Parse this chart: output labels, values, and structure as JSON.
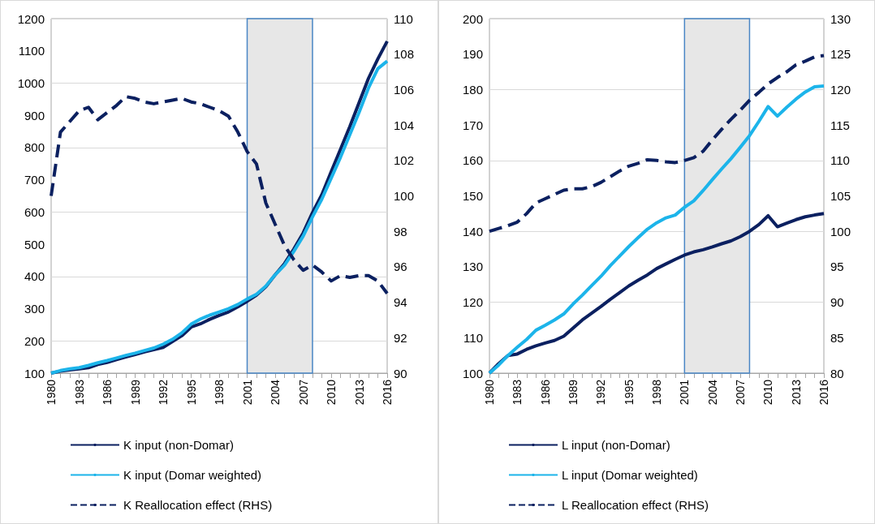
{
  "chart_data": [
    {
      "type": "line",
      "marker": "none",
      "grid": "y",
      "legend": "bottom",
      "x": [
        1980,
        1981,
        1982,
        1983,
        1984,
        1985,
        1986,
        1987,
        1988,
        1989,
        1990,
        1991,
        1992,
        1993,
        1994,
        1995,
        1996,
        1997,
        1998,
        1999,
        2000,
        2001,
        2002,
        2003,
        2004,
        2005,
        2006,
        2007,
        2008,
        2009,
        2010,
        2011,
        2012,
        2013,
        2014,
        2015,
        2016
      ],
      "xlim": [
        1980,
        2016
      ],
      "xticks": [
        1980,
        {
          "value": 1981,
          "label": null
        },
        {
          "value": 1982,
          "label": null
        },
        1983,
        {
          "value": 1984,
          "label": null
        },
        {
          "value": 1985,
          "label": null
        },
        1986,
        {
          "value": 1987,
          "label": null
        },
        {
          "value": 1988,
          "label": null
        },
        1989,
        {
          "value": 1990,
          "label": null
        },
        {
          "value": 1991,
          "label": null
        },
        1992,
        {
          "value": 1993,
          "label": null
        },
        {
          "value": 1994,
          "label": null
        },
        1995,
        {
          "value": 1996,
          "label": null
        },
        {
          "value": 1997,
          "label": null
        },
        1998,
        {
          "value": 1999,
          "label": null
        },
        {
          "value": 2000,
          "label": null
        },
        2001,
        {
          "value": 2002,
          "label": null
        },
        {
          "value": 2003,
          "label": null
        },
        2004,
        {
          "value": 2005,
          "label": null
        },
        {
          "value": 2006,
          "label": null
        },
        2007,
        {
          "value": 2008,
          "label": null
        },
        {
          "value": 2009,
          "label": null
        },
        2010,
        {
          "value": 2011,
          "label": null
        },
        {
          "value": 2012,
          "label": null
        },
        2013,
        {
          "value": 2014,
          "label": null
        },
        {
          "value": 2015,
          "label": null
        },
        2016
      ],
      "ylim": [
        100,
        1200
      ],
      "yticks": [
        100,
        200,
        300,
        400,
        500,
        600,
        700,
        800,
        900,
        1000,
        1100,
        1200
      ],
      "y2lim": [
        90,
        110
      ],
      "y2ticks": [
        90,
        92,
        94,
        96,
        98,
        100,
        102,
        104,
        106,
        108,
        110
      ],
      "bands": [
        {
          "axis": "x",
          "from": 2001,
          "to": 2008,
          "color": "#e7e7e7"
        }
      ],
      "series": [
        {
          "name": "K input (non-Domar)",
          "color": "#0b2060",
          "line_style": "solid",
          "values": [
            100,
            106,
            110,
            113,
            117,
            127,
            133,
            142,
            150,
            158,
            166,
            173,
            180,
            198,
            216,
            243,
            253,
            267,
            279,
            290,
            306,
            323,
            342,
            368,
            405,
            440,
            485,
            535,
            598,
            654,
            725,
            795,
            865,
            940,
            1015,
            1075,
            1130
          ]
        },
        {
          "name": "K input (Domar weighted)",
          "color": "#1cb4ea",
          "line_style": "solid",
          "values": [
            100,
            108,
            113,
            117,
            124,
            132,
            139,
            147,
            155,
            162,
            170,
            178,
            190,
            205,
            225,
            252,
            268,
            280,
            290,
            300,
            313,
            330,
            345,
            370,
            405,
            435,
            478,
            525,
            585,
            640,
            705,
            770,
            840,
            910,
            985,
            1045,
            1068
          ]
        },
        {
          "name": "K Reallocation effect (RHS)",
          "color": "#0b2060",
          "line_style": "dashed",
          "axis": "y2",
          "values": [
            100,
            103.6,
            104.2,
            104.8,
            105,
            104.3,
            104.7,
            105.1,
            105.6,
            105.5,
            105.3,
            105.2,
            105.3,
            105.4,
            105.5,
            105.3,
            105.2,
            105,
            104.8,
            104.5,
            103.6,
            102.5,
            101.8,
            99.6,
            98.4,
            97.2,
            96.4,
            95.8,
            96.1,
            95.7,
            95.2,
            95.5,
            95.4,
            95.5,
            95.5,
            95.2,
            94.5
          ]
        }
      ]
    },
    {
      "type": "line",
      "marker": "none",
      "grid": "y",
      "legend": "bottom",
      "x": [
        1980,
        1981,
        1982,
        1983,
        1984,
        1985,
        1986,
        1987,
        1988,
        1989,
        1990,
        1991,
        1992,
        1993,
        1994,
        1995,
        1996,
        1997,
        1998,
        1999,
        2000,
        2001,
        2002,
        2003,
        2004,
        2005,
        2006,
        2007,
        2008,
        2009,
        2010,
        2011,
        2012,
        2013,
        2014,
        2015,
        2016
      ],
      "xlim": [
        1980,
        2016
      ],
      "xticks": [
        1980,
        {
          "value": 1981,
          "label": null
        },
        {
          "value": 1982,
          "label": null
        },
        1983,
        {
          "value": 1984,
          "label": null
        },
        {
          "value": 1985,
          "label": null
        },
        1986,
        {
          "value": 1987,
          "label": null
        },
        {
          "value": 1988,
          "label": null
        },
        1989,
        {
          "value": 1990,
          "label": null
        },
        {
          "value": 1991,
          "label": null
        },
        1992,
        {
          "value": 1993,
          "label": null
        },
        {
          "value": 1994,
          "label": null
        },
        1995,
        {
          "value": 1996,
          "label": null
        },
        {
          "value": 1997,
          "label": null
        },
        1998,
        {
          "value": 1999,
          "label": null
        },
        {
          "value": 2000,
          "label": null
        },
        2001,
        {
          "value": 2002,
          "label": null
        },
        {
          "value": 2003,
          "label": null
        },
        2004,
        {
          "value": 2005,
          "label": null
        },
        {
          "value": 2006,
          "label": null
        },
        2007,
        {
          "value": 2008,
          "label": null
        },
        {
          "value": 2009,
          "label": null
        },
        2010,
        {
          "value": 2011,
          "label": null
        },
        {
          "value": 2012,
          "label": null
        },
        2013,
        {
          "value": 2014,
          "label": null
        },
        {
          "value": 2015,
          "label": null
        },
        2016
      ],
      "ylim": [
        100,
        200
      ],
      "yticks": [
        100,
        110,
        120,
        130,
        140,
        150,
        160,
        170,
        180,
        190,
        200
      ],
      "y2lim": [
        80,
        130
      ],
      "y2ticks": [
        80,
        85,
        90,
        95,
        100,
        105,
        110,
        115,
        120,
        125,
        130
      ],
      "bands": [
        {
          "axis": "x",
          "from": 2001,
          "to": 2008,
          "color": "#e7e7e7"
        }
      ],
      "series": [
        {
          "name": "L input (non-Domar)",
          "color": "#0b2060",
          "line_style": "solid",
          "values": [
            100,
            102.7,
            105,
            105.4,
            106.7,
            107.7,
            108.5,
            109.2,
            110.4,
            112.7,
            115,
            116.9,
            118.8,
            120.8,
            122.7,
            124.6,
            126.2,
            127.7,
            129.5,
            130.8,
            132.1,
            133.3,
            134.2,
            134.8,
            135.6,
            136.5,
            137.3,
            138.5,
            140,
            141.9,
            144.4,
            141.3,
            142.3,
            143.3,
            144.1,
            144.6,
            145
          ]
        },
        {
          "name": "L input (Domar weighted)",
          "color": "#1cb4ea",
          "line_style": "solid",
          "values": [
            100,
            102.3,
            105,
            107.3,
            109.5,
            112.1,
            113.5,
            115,
            116.7,
            119.5,
            122,
            124.7,
            127.3,
            130.3,
            133,
            135.7,
            138.2,
            140.6,
            142.4,
            143.8,
            144.6,
            146.8,
            148.6,
            151.5,
            154.6,
            157.6,
            160.5,
            163.7,
            167,
            171,
            175.2,
            172.5,
            175,
            177.3,
            179.3,
            180.8,
            181
          ]
        },
        {
          "name": "L Reallocation effect (RHS)",
          "color": "#0b2060",
          "line_style": "dashed",
          "axis": "y2",
          "values": [
            100,
            100.4,
            100.8,
            101.3,
            102.5,
            104,
            104.6,
            105.2,
            105.8,
            106,
            106,
            106.3,
            106.9,
            107.7,
            108.5,
            109.2,
            109.6,
            110.1,
            110,
            109.8,
            109.7,
            110,
            110.4,
            111.3,
            112.9,
            114.4,
            115.8,
            117.1,
            118.5,
            119.6,
            120.8,
            121.7,
            122.5,
            123.5,
            124,
            124.6,
            124.8
          ]
        }
      ]
    }
  ]
}
